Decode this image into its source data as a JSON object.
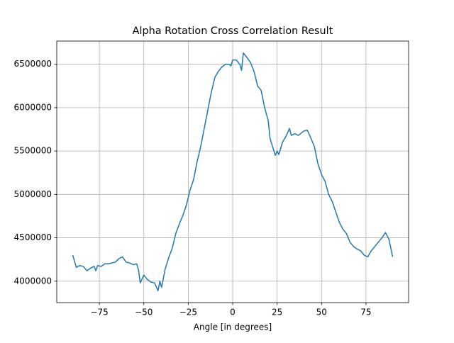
{
  "chart_data": {
    "type": "line",
    "title": "Alpha Rotation Cross Correlation Result",
    "xlabel": "Angle [in degrees]",
    "x": [
      -90,
      -88,
      -86,
      -84,
      -82,
      -80,
      -78,
      -77,
      -76,
      -74,
      -72,
      -70,
      -68,
      -66,
      -64,
      -62,
      -60,
      -58,
      -56,
      -54,
      -53,
      -52,
      -50,
      -48,
      -46,
      -44,
      -42,
      -41,
      -40,
      -38,
      -36,
      -34,
      -32,
      -30,
      -28,
      -26,
      -24,
      -22,
      -20,
      -18,
      -16,
      -14,
      -12,
      -10,
      -8,
      -6,
      -4,
      -2,
      -1,
      0,
      2,
      4,
      5,
      6,
      8,
      10,
      12,
      14,
      16,
      18,
      20,
      21,
      22,
      24,
      25,
      26,
      28,
      30,
      32,
      33,
      35,
      37,
      40,
      42,
      44,
      46,
      48,
      50,
      52,
      54,
      56,
      58,
      60,
      62,
      64,
      66,
      68,
      70,
      72,
      74,
      76,
      78,
      80,
      82,
      84,
      86,
      88,
      90
    ],
    "series": [
      {
        "color": "#1f77b4",
        "values": [
          4300000,
          4160000,
          4180000,
          4170000,
          4120000,
          4150000,
          4170000,
          4120000,
          4180000,
          4170000,
          4200000,
          4200000,
          4210000,
          4220000,
          4260000,
          4280000,
          4220000,
          4210000,
          4190000,
          4200000,
          4130000,
          3980000,
          4070000,
          4020000,
          3990000,
          3980000,
          3890000,
          4000000,
          3930000,
          4140000,
          4270000,
          4380000,
          4550000,
          4660000,
          4760000,
          4880000,
          5050000,
          5170000,
          5380000,
          5550000,
          5760000,
          5970000,
          6180000,
          6350000,
          6420000,
          6470000,
          6500000,
          6500000,
          6480000,
          6550000,
          6550000,
          6500000,
          6430000,
          6630000,
          6580000,
          6520000,
          6420000,
          6250000,
          6200000,
          6000000,
          5850000,
          5650000,
          5580000,
          5450000,
          5500000,
          5460000,
          5600000,
          5670000,
          5760000,
          5680000,
          5700000,
          5680000,
          5730000,
          5740000,
          5650000,
          5550000,
          5350000,
          5230000,
          5150000,
          5000000,
          4920000,
          4800000,
          4680000,
          4600000,
          4550000,
          4450000,
          4400000,
          4370000,
          4350000,
          4300000,
          4280000,
          4350000,
          4400000,
          4450000,
          4500000,
          4560000,
          4480000,
          4280000
        ]
      }
    ],
    "xlim": [
      -99,
      99
    ],
    "ylim": [
      3753000,
      6767000
    ],
    "xticks": [
      {
        "value": -75,
        "label": "−75"
      },
      {
        "value": -50,
        "label": "−50"
      },
      {
        "value": -25,
        "label": "−25"
      },
      0,
      25,
      50,
      75
    ],
    "yticks": [
      4000000,
      4500000,
      5000000,
      5500000,
      6000000,
      6500000
    ],
    "grid": true
  }
}
